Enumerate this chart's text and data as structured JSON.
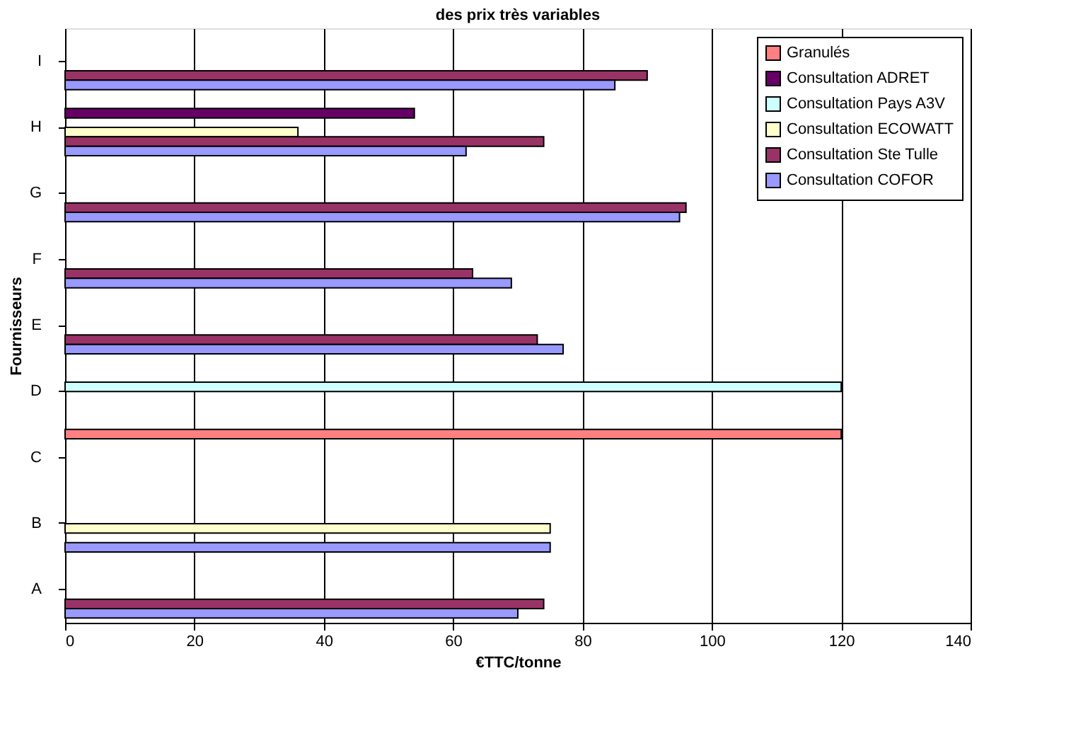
{
  "chart_data": {
    "type": "bar",
    "orientation": "horizontal",
    "title": "des prix très variables",
    "xlabel": "€TTC/tonne",
    "ylabel": "Fournisseurs",
    "categories": [
      "I",
      "H",
      "G",
      "F",
      "E",
      "D",
      "C",
      "B",
      "A"
    ],
    "series": [
      {
        "name": "Granulés",
        "color": "#ff8080",
        "values": [
          null,
          null,
          null,
          null,
          null,
          null,
          120,
          null,
          null
        ]
      },
      {
        "name": "Consultation ADRET",
        "color": "#660066",
        "values": [
          null,
          54,
          null,
          null,
          null,
          null,
          null,
          null,
          null
        ]
      },
      {
        "name": "Consultation Pays A3V",
        "color": "#ccffff",
        "values": [
          null,
          null,
          null,
          null,
          null,
          120,
          null,
          null,
          null
        ]
      },
      {
        "name": "Consultation ECOWATT",
        "color": "#ffffcc",
        "values": [
          null,
          36,
          null,
          null,
          null,
          null,
          null,
          75,
          null
        ]
      },
      {
        "name": "Consultation Ste Tulle",
        "color": "#993366",
        "values": [
          90,
          74,
          96,
          63,
          73,
          null,
          null,
          null,
          74
        ]
      },
      {
        "name": "Consultation COFOR",
        "color": "#9999ff",
        "values": [
          85,
          62,
          95,
          69,
          77,
          null,
          null,
          75,
          70
        ]
      }
    ],
    "xlim": [
      0,
      140
    ],
    "xticks": [
      0,
      20,
      40,
      60,
      80,
      100,
      120,
      140
    ],
    "grid": "x",
    "legend": "top right"
  }
}
